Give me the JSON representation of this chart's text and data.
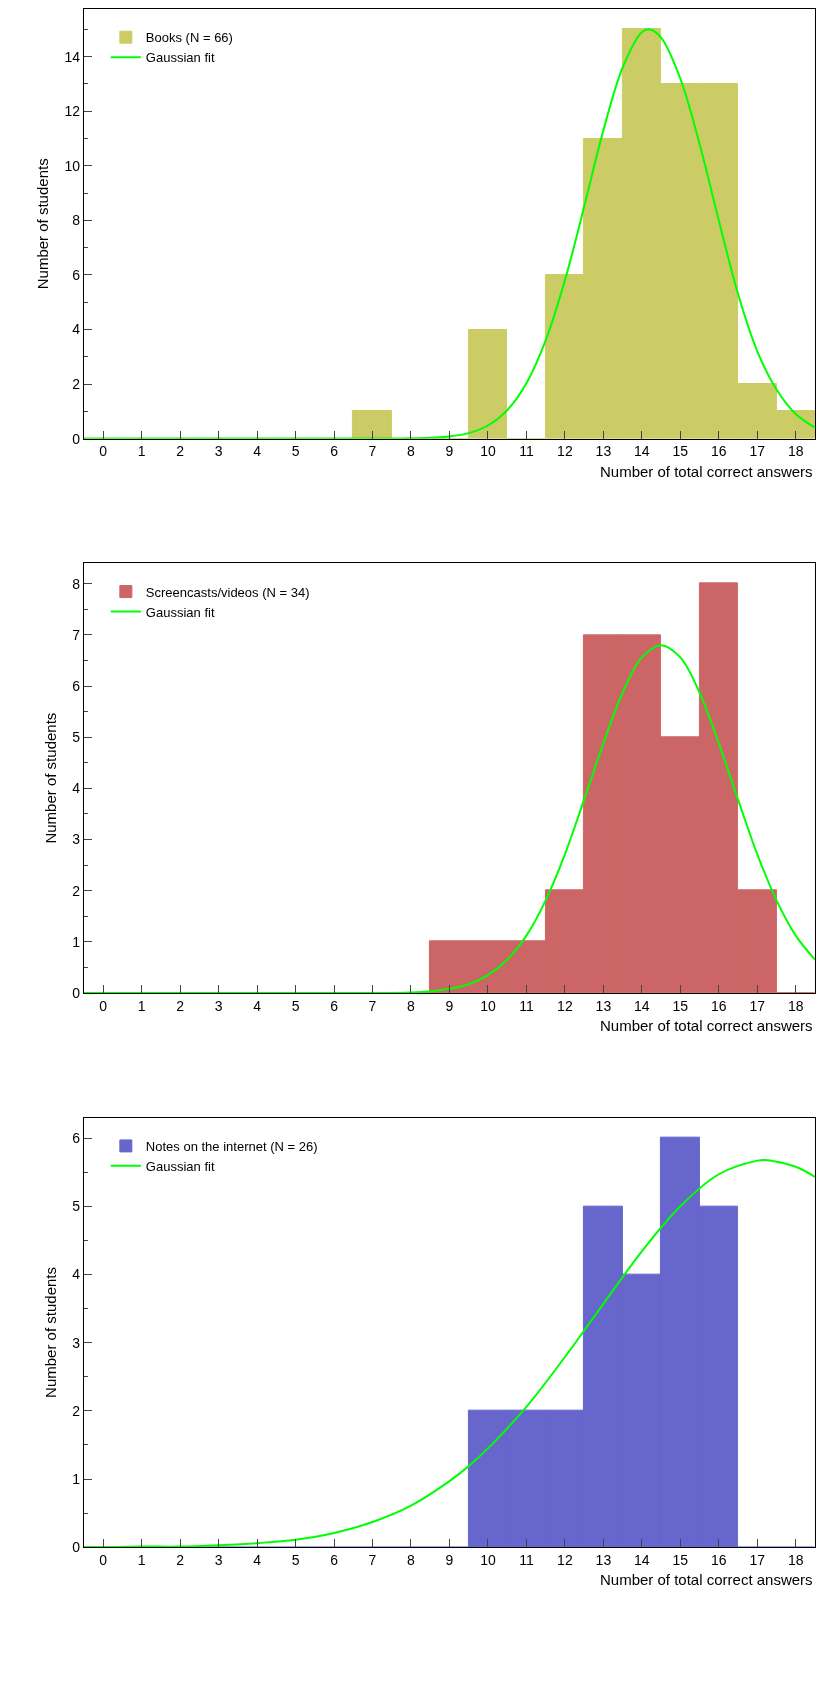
{
  "chart_data": [
    {
      "type": "histogram",
      "xlabel": "Number of total correct answers",
      "ylabel": "Number of students",
      "bins": [
        -0.5,
        0.5,
        1.5,
        2.5,
        3.5,
        4.5,
        5.5,
        6.5,
        7.5,
        8.5,
        9.5,
        10.5,
        11.5,
        12.5,
        13.5,
        14.5,
        15.5,
        16.5,
        17.5,
        18.5
      ],
      "xlim": [
        -0.5,
        18.5
      ],
      "xticks": [
        0,
        1,
        2,
        3,
        4,
        5,
        6,
        7,
        8,
        9,
        10,
        11,
        12,
        13,
        14,
        15,
        16,
        17,
        18
      ],
      "ylim": [
        0,
        15.75
      ],
      "yticks": [
        0,
        2,
        4,
        6,
        8,
        10,
        12,
        14
      ],
      "legend": "top left",
      "series": [
        {
          "name": "Books (N = 66)",
          "color": "#cccc66",
          "values": [
            0,
            0,
            0,
            0,
            0,
            0,
            0,
            1,
            0,
            0,
            4,
            0,
            6,
            11,
            15,
            13,
            13,
            2,
            1
          ]
        },
        {
          "type": "line",
          "name": "Gaussian fit",
          "color": "#00ff00",
          "x": [
            -0.5,
            7,
            8,
            9,
            9.5,
            10,
            10.5,
            11,
            11.5,
            12,
            12.5,
            13,
            13.5,
            14,
            14.2,
            14.5,
            15,
            15.5,
            16,
            16.5,
            17,
            17.5,
            18,
            18.5
          ],
          "values": [
            0,
            0,
            0.01,
            0.08,
            0.2,
            0.48,
            1.04,
            2.03,
            3.6,
            5.8,
            8.5,
            11.3,
            13.6,
            14.9,
            15,
            14.7,
            13.2,
            10.8,
            8.0,
            5.3,
            3.2,
            1.8,
            0.9,
            0.4
          ]
        }
      ]
    },
    {
      "type": "histogram",
      "xlabel": "Number of total correct answers",
      "ylabel": "Number of students",
      "bins": [
        -0.5,
        0.5,
        1.5,
        2.5,
        3.5,
        4.5,
        5.5,
        6.5,
        7.5,
        8.5,
        9.5,
        10.5,
        11.5,
        12.5,
        13.5,
        14.5,
        15.5,
        16.5,
        17.5,
        18.5
      ],
      "xlim": [
        -0.5,
        18.5
      ],
      "xticks": [
        0,
        1,
        2,
        3,
        4,
        5,
        6,
        7,
        8,
        9,
        10,
        11,
        12,
        13,
        14,
        15,
        16,
        17,
        18
      ],
      "ylim": [
        0,
        8.4
      ],
      "yticks": [
        0,
        1,
        2,
        3,
        4,
        5,
        6,
        7,
        8
      ],
      "legend": "top left",
      "series": [
        {
          "name": "Screencasts/videos (N = 34)",
          "color": "#cc6666",
          "values": [
            0,
            0,
            0,
            0,
            0,
            0,
            0,
            0,
            0,
            1,
            1,
            1,
            2,
            7,
            7,
            5,
            8,
            2,
            0
          ]
        },
        {
          "type": "line",
          "name": "Gaussian fit",
          "color": "#00ff00",
          "x": [
            -0.5,
            7,
            8,
            8.5,
            9,
            9.5,
            10,
            10.5,
            11,
            11.5,
            12,
            12.5,
            13,
            13.5,
            14,
            14.5,
            15,
            15.5,
            16,
            16.5,
            17,
            17.5,
            18,
            18.5
          ],
          "values": [
            0,
            0,
            0.01,
            0.03,
            0.08,
            0.17,
            0.35,
            0.65,
            1.12,
            1.81,
            2.71,
            3.78,
            4.88,
            5.87,
            6.56,
            6.8,
            6.56,
            5.87,
            4.88,
            3.78,
            2.71,
            1.81,
            1.12,
            0.65
          ]
        }
      ]
    },
    {
      "type": "histogram",
      "xlabel": "Number of total correct answers",
      "ylabel": "Number of students",
      "bins": [
        -0.5,
        0.5,
        1.5,
        2.5,
        3.5,
        4.5,
        5.5,
        6.5,
        7.5,
        8.5,
        9.5,
        10.5,
        11.5,
        12.5,
        13.5,
        14.5,
        15.5,
        16.5,
        17.5,
        18.5
      ],
      "xlim": [
        -0.5,
        18.5
      ],
      "xticks": [
        0,
        1,
        2,
        3,
        4,
        5,
        6,
        7,
        8,
        9,
        10,
        11,
        12,
        13,
        14,
        15,
        16,
        17,
        18
      ],
      "ylim": [
        0,
        6.3
      ],
      "yticks": [
        0,
        1,
        2,
        3,
        4,
        5,
        6
      ],
      "legend": "top left",
      "series": [
        {
          "name": "Notes on the internet (N = 26)",
          "color": "#6666cc",
          "values": [
            0,
            0,
            0,
            0,
            0,
            0,
            0,
            0,
            0,
            0,
            2,
            2,
            2,
            5,
            4,
            6,
            5,
            0,
            0
          ]
        },
        {
          "type": "line",
          "name": "Gaussian fit",
          "color": "#00ff00",
          "x": [
            -0.5,
            0,
            1,
            2,
            3,
            4,
            5,
            6,
            7,
            8,
            9,
            9.5,
            10,
            11,
            12,
            13,
            14,
            15,
            16,
            17,
            17.2,
            18,
            18.5
          ],
          "values": [
            0,
            0,
            0.01,
            0.01,
            0.03,
            0.06,
            0.11,
            0.21,
            0.37,
            0.61,
            0.97,
            1.19,
            1.45,
            2.06,
            2.79,
            3.57,
            4.34,
            5.0,
            5.47,
            5.67,
            5.68,
            5.58,
            5.43
          ]
        }
      ]
    }
  ]
}
